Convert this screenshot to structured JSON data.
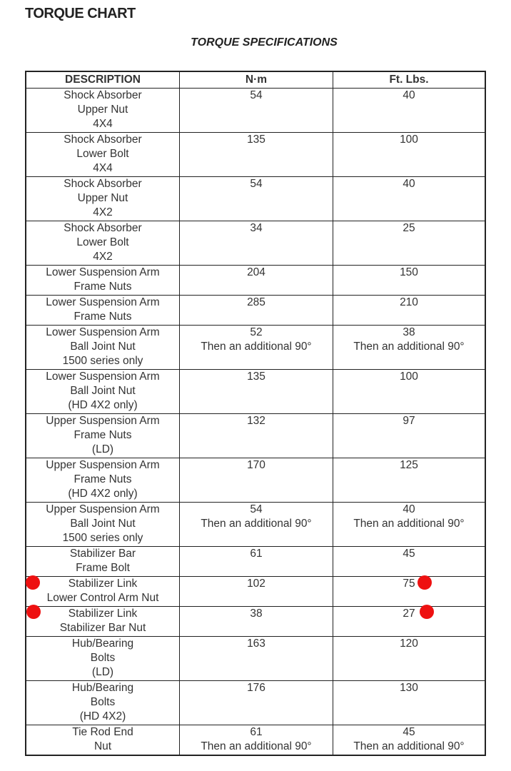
{
  "header": {
    "title": "TORQUE CHART",
    "subtitle": "TORQUE SPECIFICATIONS"
  },
  "table": {
    "columns": [
      "DESCRIPTION",
      "N·m",
      "Ft. Lbs."
    ],
    "rows": [
      [
        [
          "Shock Absorber",
          "Upper Nut",
          "4X4"
        ],
        [
          54
        ],
        [
          40
        ]
      ],
      [
        [
          "Shock Absorber",
          "Lower Bolt",
          "4X4"
        ],
        [
          135
        ],
        [
          100
        ]
      ],
      [
        [
          "Shock Absorber",
          "Upper Nut",
          "4X2"
        ],
        [
          54
        ],
        [
          40
        ]
      ],
      [
        [
          "Shock Absorber",
          "Lower Bolt",
          "4X2"
        ],
        [
          34
        ],
        [
          25
        ]
      ],
      [
        [
          "Lower Suspension Arm",
          "Frame Nuts"
        ],
        [
          204
        ],
        [
          150
        ]
      ],
      [
        [
          "Lower Suspension Arm",
          "Frame Nuts"
        ],
        [
          285
        ],
        [
          210
        ]
      ],
      [
        [
          "Lower Suspension Arm",
          "Ball Joint Nut",
          "1500 series only"
        ],
        [
          52,
          "Then an additional 90°"
        ],
        [
          38,
          "Then an additional 90°"
        ]
      ],
      [
        [
          "Lower Suspension Arm",
          "Ball Joint Nut",
          "(HD 4X2 only)"
        ],
        [
          135
        ],
        [
          100
        ]
      ],
      [
        [
          "Upper Suspension Arm",
          "Frame Nuts",
          "(LD)"
        ],
        [
          132
        ],
        [
          97
        ]
      ],
      [
        [
          "Upper Suspension Arm",
          "Frame Nuts",
          "(HD 4X2 only)"
        ],
        [
          170
        ],
        [
          125
        ]
      ],
      [
        [
          "Upper Suspension Arm",
          "Ball Joint Nut",
          "1500 series only"
        ],
        [
          54,
          "Then an additional 90°"
        ],
        [
          40,
          "Then an additional 90°"
        ]
      ],
      [
        [
          "Stabilizer Bar",
          "Frame Bolt"
        ],
        [
          61
        ],
        [
          45
        ]
      ],
      [
        [
          "Stabilizer Link",
          "Lower Control Arm Nut"
        ],
        [
          102
        ],
        [
          75
        ]
      ],
      [
        [
          "Stabilizer Link",
          "Stabilizer Bar Nut"
        ],
        [
          38
        ],
        [
          27
        ]
      ],
      [
        [
          "Hub/Bearing",
          "Bolts",
          "(LD)"
        ],
        [
          163
        ],
        [
          120
        ]
      ],
      [
        [
          "Hub/Bearing",
          "Bolts",
          "(HD 4X2)"
        ],
        [
          176
        ],
        [
          130
        ]
      ],
      [
        [
          "Tie Rod End",
          "Nut"
        ],
        [
          61,
          "Then an additional 90°"
        ],
        [
          45,
          "Then an additional 90°"
        ]
      ]
    ]
  }
}
